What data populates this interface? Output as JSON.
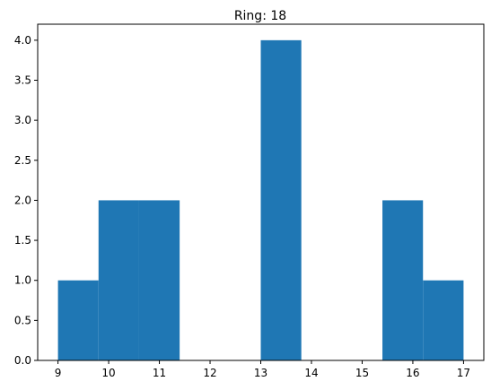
{
  "chart_data": {
    "type": "bar",
    "subtype": "histogram",
    "title": "Ring: 18",
    "xlabel": "",
    "ylabel": "",
    "bin_edges": [
      9.0,
      9.8,
      10.6,
      11.4,
      12.2,
      13.0,
      13.8,
      14.6,
      15.4,
      16.2,
      17.0
    ],
    "counts": [
      1,
      2,
      2,
      0,
      0,
      4,
      0,
      0,
      2,
      1
    ],
    "xlim": [
      8.6,
      17.4
    ],
    "ylim": [
      0,
      4.2
    ],
    "xticks": [
      9,
      10,
      11,
      12,
      13,
      14,
      15,
      16,
      17
    ],
    "yticks": [
      0.0,
      0.5,
      1.0,
      1.5,
      2.0,
      2.5,
      3.0,
      3.5,
      4.0
    ],
    "ytick_labels": [
      "0.0",
      "0.5",
      "1.0",
      "1.5",
      "2.0",
      "2.5",
      "3.0",
      "3.5",
      "4.0"
    ],
    "grid": false,
    "bar_color": "#1f77b4"
  }
}
